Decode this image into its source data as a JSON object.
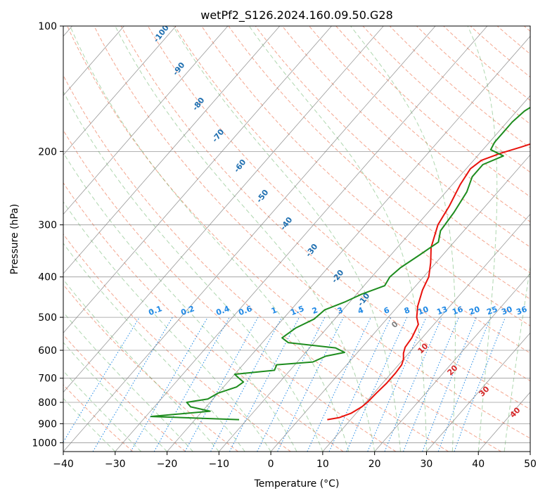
{
  "chart_data": {
    "type": "line",
    "title": "wetPf2_S126.2024.160.09.50.G28",
    "xlabel": "Temperature (°C)",
    "ylabel": "Pressure (hPa)",
    "xlim": [
      -40,
      50
    ],
    "ylim": [
      1050,
      100
    ],
    "y_scale": "log",
    "grid": true,
    "x_ticks": [
      -40,
      -30,
      -20,
      -10,
      0,
      10,
      20,
      30,
      40,
      50
    ],
    "y_ticks": [
      100,
      200,
      300,
      400,
      500,
      600,
      700,
      800,
      900,
      1000
    ],
    "series": [
      {
        "color": "#e8120c",
        "points": [
          [
            880,
            5.5
          ],
          [
            870,
            7.5
          ],
          [
            850,
            9.0
          ],
          [
            820,
            10.0
          ],
          [
            800,
            10.3
          ],
          [
            760,
            10.5
          ],
          [
            720,
            10.8
          ],
          [
            680,
            10.8
          ],
          [
            650,
            10.6
          ],
          [
            630,
            10.0
          ],
          [
            610,
            9.0
          ],
          [
            590,
            8.3
          ],
          [
            560,
            8.0
          ],
          [
            520,
            7.0
          ],
          [
            500,
            5.5
          ],
          [
            470,
            3.8
          ],
          [
            430,
            2.0
          ],
          [
            400,
            1.0
          ],
          [
            370,
            -1.0
          ],
          [
            340,
            -3.5
          ],
          [
            300,
            -6.0
          ],
          [
            270,
            -7.0
          ],
          [
            240,
            -8.5
          ],
          [
            220,
            -9.2
          ],
          [
            210,
            -8.5
          ],
          [
            202,
            -6.0
          ],
          [
            195,
            -3.0
          ],
          [
            185,
            1.0
          ],
          [
            170,
            6.0
          ],
          [
            155,
            10.0
          ],
          [
            140,
            13.0
          ],
          [
            125,
            17.0
          ],
          [
            115,
            20.0
          ],
          [
            105,
            23.0
          ],
          [
            100,
            25.0
          ]
        ]
      },
      {
        "color": "#1e8c1e",
        "points": [
          [
            880,
            -11.5
          ],
          [
            865,
            -29.0
          ],
          [
            840,
            -18.5
          ],
          [
            820,
            -23.0
          ],
          [
            800,
            -24.5
          ],
          [
            785,
            -21.0
          ],
          [
            760,
            -20.0
          ],
          [
            735,
            -17.5
          ],
          [
            715,
            -17.0
          ],
          [
            700,
            -18.5
          ],
          [
            685,
            -20.0
          ],
          [
            670,
            -13.0
          ],
          [
            650,
            -13.5
          ],
          [
            640,
            -7.0
          ],
          [
            620,
            -5.5
          ],
          [
            607,
            -2.5
          ],
          [
            592,
            -5.0
          ],
          [
            575,
            -15.0
          ],
          [
            560,
            -17.0
          ],
          [
            530,
            -16.0
          ],
          [
            505,
            -14.0
          ],
          [
            480,
            -13.5
          ],
          [
            460,
            -11.0
          ],
          [
            440,
            -9.0
          ],
          [
            420,
            -6.0
          ],
          [
            400,
            -6.5
          ],
          [
            380,
            -6.0
          ],
          [
            355,
            -4.5
          ],
          [
            330,
            -3.0
          ],
          [
            310,
            -4.5
          ],
          [
            280,
            -5.0
          ],
          [
            250,
            -6.0
          ],
          [
            230,
            -7.5
          ],
          [
            215,
            -7.5
          ],
          [
            205,
            -5.0
          ],
          [
            198,
            -8.5
          ],
          [
            190,
            -9.0
          ],
          [
            180,
            -9.0
          ],
          [
            170,
            -9.0
          ],
          [
            160,
            -8.5
          ],
          [
            145,
            -6.0
          ],
          [
            130,
            -3.0
          ],
          [
            115,
            1.0
          ],
          [
            105,
            4.0
          ],
          [
            100,
            6.0
          ]
        ]
      }
    ],
    "dry_adiabat_labels": [
      "-100",
      "-90",
      "-80",
      "-70",
      "-60",
      "-50",
      "-40",
      "-30",
      "-20",
      "-10"
    ],
    "moist_adiabat_labels": [
      "0",
      "10",
      "20",
      "30",
      "40"
    ],
    "mixing_ratio_labels": [
      "0.1",
      "0.2",
      "0.4",
      "0.6",
      "1",
      "1.5",
      "2",
      "3",
      "4",
      "6",
      "8",
      "10",
      "13",
      "16",
      "20",
      "25",
      "30",
      "36"
    ],
    "mixing_ratio_values": [
      0.1,
      0.2,
      0.4,
      0.6,
      1,
      1.5,
      2,
      3,
      4,
      6,
      8,
      10,
      13,
      16,
      20,
      25,
      30,
      36
    ],
    "colors": {
      "temperature": "#e8120c",
      "dewpoint": "#1e8c1e",
      "dry_adiabat": "#f08060",
      "moist_adiabat": "#60b060",
      "mixing_ratio": "#1e88e5",
      "isotherm": "#808080",
      "dry_label": "#1f6fb0",
      "moist_label": "#d62728",
      "mixing_label": "#1e88e5"
    }
  }
}
